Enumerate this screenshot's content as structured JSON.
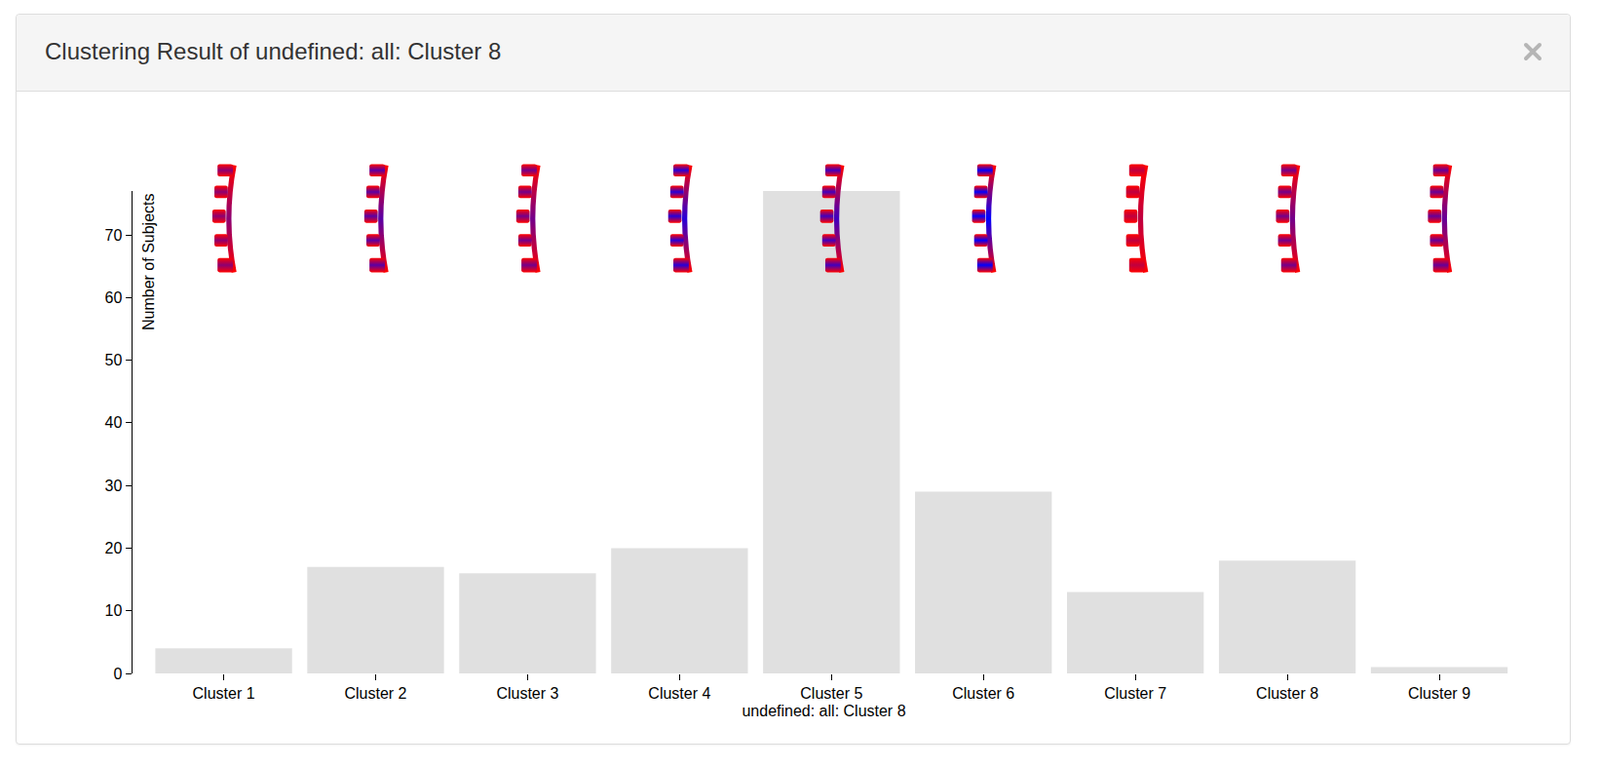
{
  "chart_data": {
    "type": "bar",
    "title": "Clustering Result of undefined: all: Cluster 8",
    "x_label": "undefined: all: Cluster 8",
    "y_label": "Number of Subjects",
    "categories": [
      "Cluster 1",
      "Cluster 2",
      "Cluster 3",
      "Cluster 4",
      "Cluster 5",
      "Cluster 6",
      "Cluster 7",
      "Cluster 8",
      "Cluster 9"
    ],
    "values": [
      4,
      17,
      16,
      20,
      77,
      29,
      13,
      18,
      1
    ],
    "color": "#e0e0e0",
    "ylim": [
      0,
      77
    ],
    "yticks": [
      0,
      10,
      20,
      30,
      40,
      50,
      60,
      70
    ],
    "grid": false
  }
}
